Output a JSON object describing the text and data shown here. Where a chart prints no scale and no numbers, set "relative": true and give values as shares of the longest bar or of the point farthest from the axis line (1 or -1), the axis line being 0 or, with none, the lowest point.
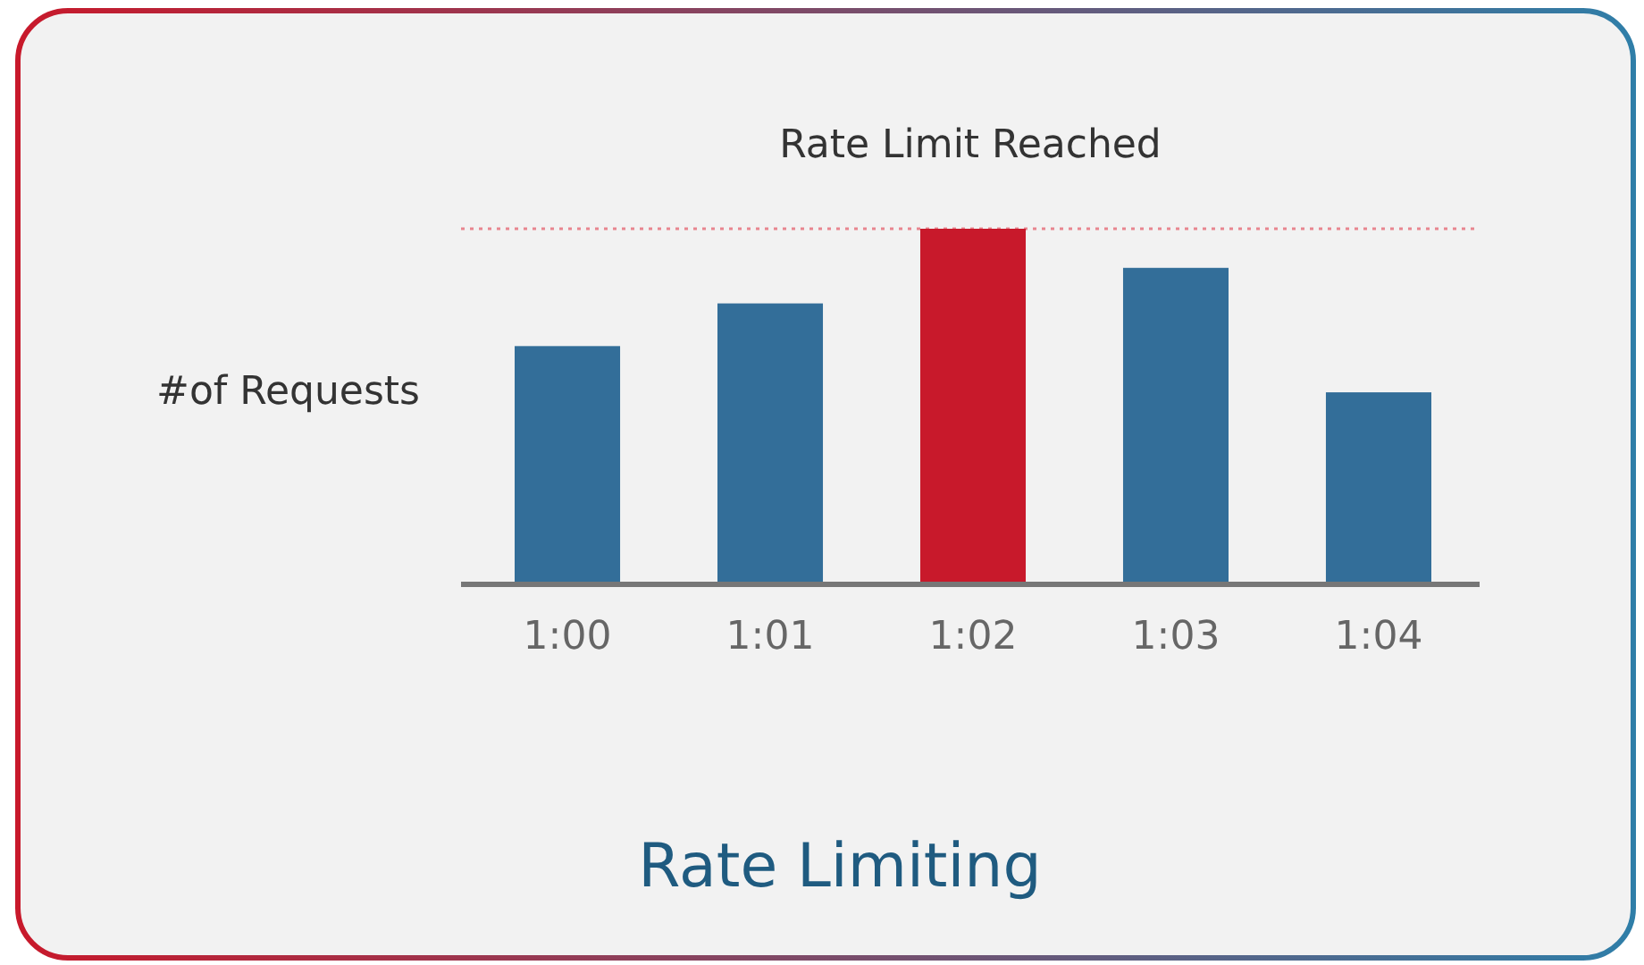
{
  "chart_data": {
    "type": "bar",
    "title": "Rate Limiting",
    "ylabel": "#of Requests",
    "relative": true,
    "categories": [
      "1:00",
      "1:01",
      "1:02",
      "1:03",
      "1:04"
    ],
    "values": [
      0.67,
      0.79,
      1,
      0.89,
      0.54
    ],
    "colors": [
      "#336e99",
      "#336e99",
      "#c8192b",
      "#336e99",
      "#336e99"
    ],
    "ref_lines": [
      {
        "axis": "y",
        "value": 1,
        "label": "Rate Limit Reached",
        "color": "#e8858f",
        "line_style": "dotted"
      }
    ]
  }
}
